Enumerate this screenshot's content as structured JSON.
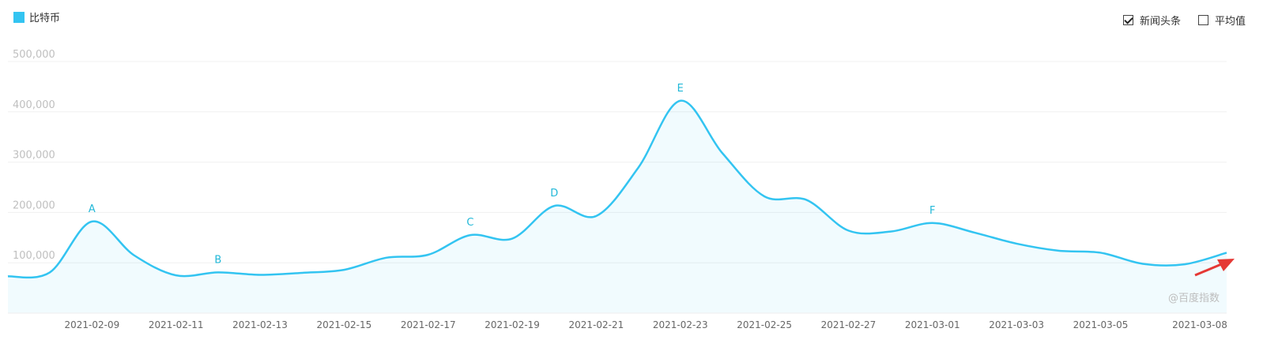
{
  "legend": {
    "label": "比特币",
    "color": "#33c4f1"
  },
  "toggles": [
    {
      "label": "新闻头条",
      "checked": true
    },
    {
      "label": "平均值",
      "checked": false
    }
  ],
  "watermark": "@百度指数",
  "chart_data": {
    "type": "area",
    "title": "",
    "xlabel": "",
    "ylabel": "",
    "x_start": "2021-02-07",
    "x_end": "2021-03-08",
    "ylim": [
      0,
      500000
    ],
    "y_ticks": [
      100000,
      200000,
      300000,
      400000,
      500000
    ],
    "y_tick_labels": [
      "100,000",
      "200,000",
      "300,000",
      "400,000",
      "500,000"
    ],
    "x_tick_labels": [
      "2021-02-09",
      "2021-02-11",
      "2021-02-13",
      "2021-02-15",
      "2021-02-17",
      "2021-02-19",
      "2021-02-21",
      "2021-02-23",
      "2021-02-25",
      "2021-02-27",
      "2021-03-01",
      "2021-03-03",
      "2021-03-05",
      "2021-03-08"
    ],
    "grid": true,
    "series": [
      {
        "name": "比特币",
        "color": "#33c4f1",
        "values": [
          [
            "2021-02-07",
            73000
          ],
          [
            "2021-02-08",
            81000
          ],
          [
            "2021-02-09",
            182000
          ],
          [
            "2021-02-10",
            115000
          ],
          [
            "2021-02-11",
            75000
          ],
          [
            "2021-02-12",
            81000
          ],
          [
            "2021-02-13",
            76000
          ],
          [
            "2021-02-14",
            80000
          ],
          [
            "2021-02-15",
            86000
          ],
          [
            "2021-02-16",
            110000
          ],
          [
            "2021-02-17",
            116000
          ],
          [
            "2021-02-18",
            155000
          ],
          [
            "2021-02-19",
            148000
          ],
          [
            "2021-02-20",
            213000
          ],
          [
            "2021-02-21",
            193000
          ],
          [
            "2021-02-22",
            289000
          ],
          [
            "2021-02-23",
            422000
          ],
          [
            "2021-02-24",
            318000
          ],
          [
            "2021-02-25",
            232000
          ],
          [
            "2021-02-26",
            225000
          ],
          [
            "2021-02-27",
            164000
          ],
          [
            "2021-02-28",
            162000
          ],
          [
            "2021-03-01",
            179000
          ],
          [
            "2021-03-02",
            160000
          ],
          [
            "2021-03-03",
            138000
          ],
          [
            "2021-03-04",
            124000
          ],
          [
            "2021-03-05",
            120000
          ],
          [
            "2021-03-06",
            98000
          ],
          [
            "2021-03-07",
            97000
          ],
          [
            "2021-03-08",
            120000
          ]
        ]
      }
    ],
    "annotations": [
      {
        "label": "A",
        "date": "2021-02-09",
        "value": 182000
      },
      {
        "label": "B",
        "date": "2021-02-12",
        "value": 81000
      },
      {
        "label": "C",
        "date": "2021-02-18",
        "value": 155000
      },
      {
        "label": "D",
        "date": "2021-02-20",
        "value": 213000
      },
      {
        "label": "E",
        "date": "2021-02-23",
        "value": 422000
      },
      {
        "label": "F",
        "date": "2021-03-01",
        "value": 179000
      }
    ]
  }
}
